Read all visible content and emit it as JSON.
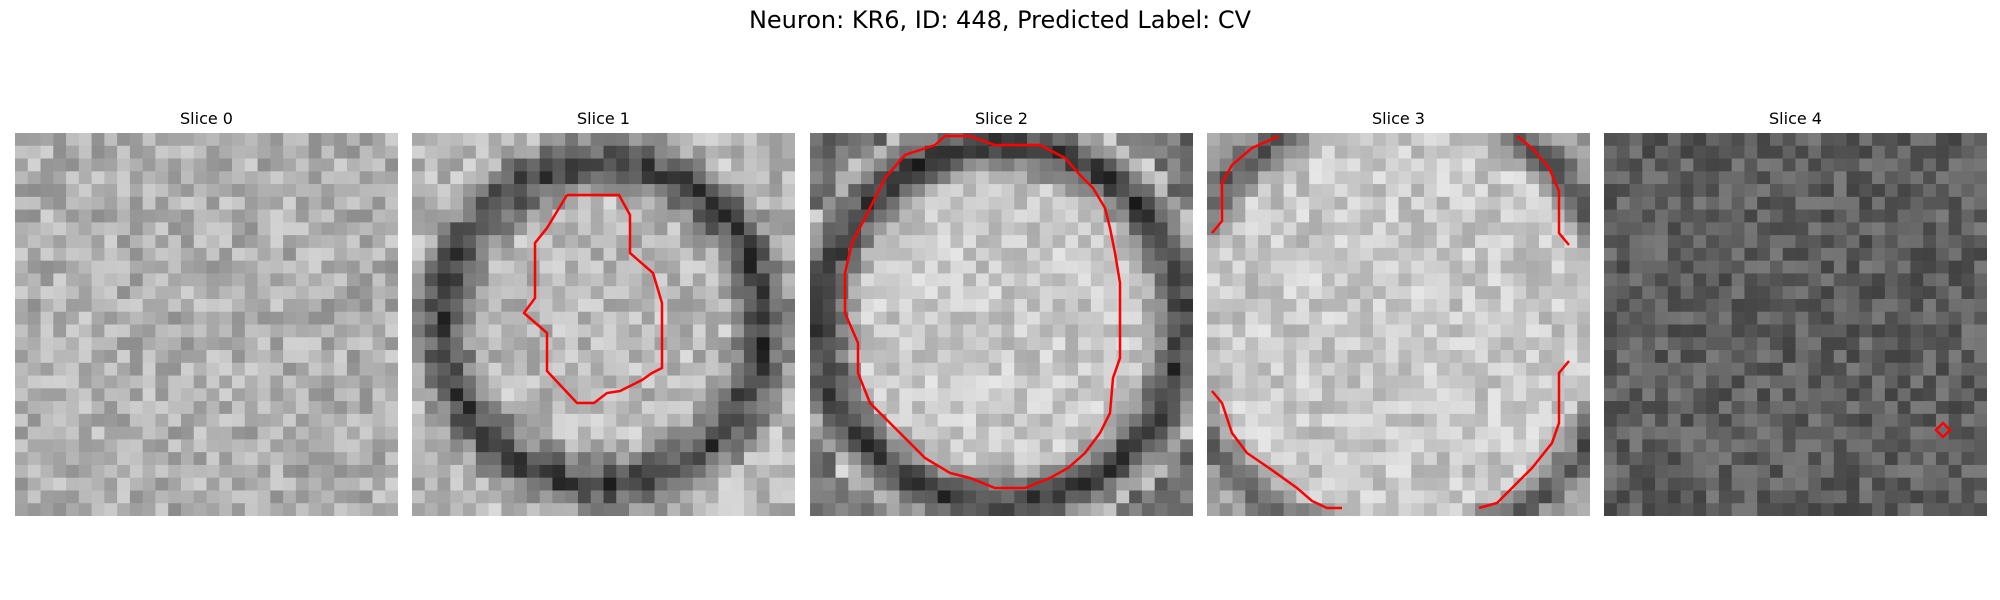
{
  "title": "Neuron: KR6, ID: 448, Predicted Label: CV",
  "overlay_color": "#ff0000",
  "slices": [
    {
      "title": "Slice 0",
      "seed": 11,
      "base": 175,
      "amp": 70,
      "ring_r": 0,
      "ring_w": 0,
      "ring_dark": 0,
      "bg": 160,
      "outer": 0
    },
    {
      "title": "Slice 1",
      "seed": 23,
      "base": 185,
      "amp": 70,
      "ring_r": 0.42,
      "ring_w": 0.1,
      "ring_dark": 130,
      "bg": 175,
      "outer": 0
    },
    {
      "title": "Slice 2",
      "seed": 37,
      "base": 200,
      "amp": 60,
      "ring_r": 0.47,
      "ring_w": 0.1,
      "ring_dark": 150,
      "bg": 110,
      "outer": 1
    },
    {
      "title": "Slice 3",
      "seed": 51,
      "base": 200,
      "amp": 60,
      "ring_r": 0.58,
      "ring_w": 0.08,
      "ring_dark": 120,
      "bg": 150,
      "outer": 1
    },
    {
      "title": "Slice 4",
      "seed": 67,
      "base": 95,
      "amp": 60,
      "ring_r": 0,
      "ring_w": 0,
      "ring_dark": 0,
      "bg": 70,
      "outer": 0
    }
  ]
}
